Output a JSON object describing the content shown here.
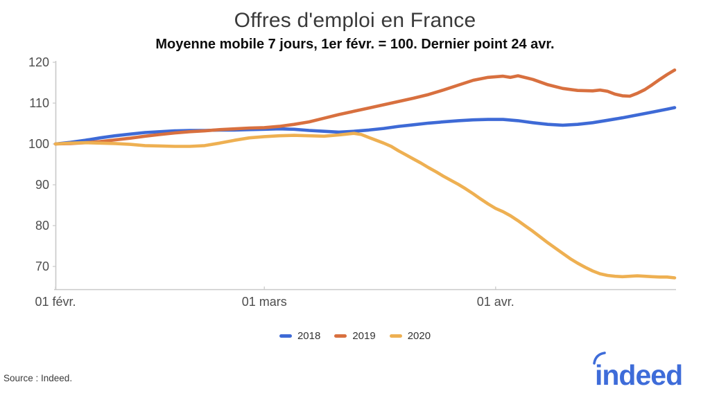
{
  "header": {
    "title": "Offres d'emploi en France",
    "subtitle": "Moyenne mobile 7 jours, 1er févr. = 100. Dernier point 24 avr."
  },
  "footer": {
    "source": "Source : Indeed.",
    "logo_text": "indeed"
  },
  "colors": {
    "axis": "#c9c9c9",
    "tick_label": "#4d4d4d",
    "title": "#3a3a3a",
    "subtitle": "#0d0d0d",
    "logo_blue": "#3e6cd9",
    "series_2018": "#3e6ad6",
    "series_2019": "#d8703f",
    "series_2020": "#eeb052"
  },
  "chart_data": {
    "type": "line",
    "title": "Offres d'emploi en France",
    "subtitle": "Moyenne mobile 7 jours, 1er févr. = 100. Dernier point 24 avr.",
    "xlabel": "",
    "ylabel": "",
    "x_unit": "jours depuis le 1er février 2020",
    "x_range_days": [
      0,
      83
    ],
    "ylim": [
      65,
      121
    ],
    "grid": false,
    "legend_position": "bottom",
    "yticks": [
      70,
      80,
      90,
      100,
      110,
      120
    ],
    "xticks": [
      {
        "day": 0,
        "label": "01 févr."
      },
      {
        "day": 28,
        "label": "01 mars"
      },
      {
        "day": 59,
        "label": "01 avr."
      }
    ],
    "series": [
      {
        "name": "2018",
        "color": "#3e6ad6",
        "points": [
          [
            0,
            100
          ],
          [
            2,
            100.4
          ],
          [
            4,
            100.9
          ],
          [
            6,
            101.5
          ],
          [
            8,
            102.0
          ],
          [
            10,
            102.4
          ],
          [
            12,
            102.8
          ],
          [
            14,
            103.0
          ],
          [
            16,
            103.2
          ],
          [
            18,
            103.3
          ],
          [
            20,
            103.3
          ],
          [
            22,
            103.4
          ],
          [
            24,
            103.4
          ],
          [
            26,
            103.5
          ],
          [
            28,
            103.6
          ],
          [
            30,
            103.7
          ],
          [
            32,
            103.6
          ],
          [
            34,
            103.3
          ],
          [
            36,
            103.1
          ],
          [
            38,
            102.9
          ],
          [
            40,
            103.1
          ],
          [
            42,
            103.4
          ],
          [
            44,
            103.8
          ],
          [
            46,
            104.3
          ],
          [
            48,
            104.7
          ],
          [
            50,
            105.1
          ],
          [
            52,
            105.4
          ],
          [
            54,
            105.7
          ],
          [
            56,
            105.9
          ],
          [
            58,
            106.0
          ],
          [
            60,
            106.0
          ],
          [
            62,
            105.7
          ],
          [
            64,
            105.2
          ],
          [
            66,
            104.8
          ],
          [
            68,
            104.6
          ],
          [
            70,
            104.8
          ],
          [
            72,
            105.2
          ],
          [
            74,
            105.8
          ],
          [
            76,
            106.4
          ],
          [
            78,
            107.1
          ],
          [
            80,
            107.8
          ],
          [
            82,
            108.5
          ],
          [
            83,
            108.9
          ]
        ]
      },
      {
        "name": "2019",
        "color": "#d8703f",
        "points": [
          [
            0,
            100
          ],
          [
            2,
            100.1
          ],
          [
            4,
            100.3
          ],
          [
            6,
            100.6
          ],
          [
            8,
            101.0
          ],
          [
            10,
            101.4
          ],
          [
            12,
            101.9
          ],
          [
            14,
            102.3
          ],
          [
            16,
            102.7
          ],
          [
            18,
            103.0
          ],
          [
            20,
            103.2
          ],
          [
            22,
            103.5
          ],
          [
            24,
            103.7
          ],
          [
            26,
            103.9
          ],
          [
            28,
            104.0
          ],
          [
            30,
            104.3
          ],
          [
            32,
            104.8
          ],
          [
            34,
            105.4
          ],
          [
            36,
            106.3
          ],
          [
            38,
            107.2
          ],
          [
            40,
            108.0
          ],
          [
            42,
            108.8
          ],
          [
            44,
            109.6
          ],
          [
            46,
            110.4
          ],
          [
            48,
            111.2
          ],
          [
            50,
            112.1
          ],
          [
            52,
            113.2
          ],
          [
            54,
            114.4
          ],
          [
            56,
            115.6
          ],
          [
            58,
            116.3
          ],
          [
            60,
            116.6
          ],
          [
            61,
            116.3
          ],
          [
            62,
            116.7
          ],
          [
            64,
            115.8
          ],
          [
            66,
            114.5
          ],
          [
            68,
            113.6
          ],
          [
            70,
            113.1
          ],
          [
            72,
            113.0
          ],
          [
            73,
            113.2
          ],
          [
            74,
            112.9
          ],
          [
            75,
            112.2
          ],
          [
            76,
            111.8
          ],
          [
            77,
            111.7
          ],
          [
            78,
            112.4
          ],
          [
            79,
            113.3
          ],
          [
            80,
            114.5
          ],
          [
            81,
            115.8
          ],
          [
            82,
            117.0
          ],
          [
            83,
            118.1
          ]
        ]
      },
      {
        "name": "2020",
        "color": "#eeb052",
        "points": [
          [
            0,
            100
          ],
          [
            2,
            100.2
          ],
          [
            4,
            100.3
          ],
          [
            6,
            100.2
          ],
          [
            8,
            100.1
          ],
          [
            10,
            99.9
          ],
          [
            12,
            99.6
          ],
          [
            14,
            99.5
          ],
          [
            16,
            99.4
          ],
          [
            18,
            99.4
          ],
          [
            20,
            99.6
          ],
          [
            22,
            100.2
          ],
          [
            24,
            100.9
          ],
          [
            26,
            101.5
          ],
          [
            28,
            101.8
          ],
          [
            30,
            102.0
          ],
          [
            32,
            102.1
          ],
          [
            34,
            102.0
          ],
          [
            36,
            101.9
          ],
          [
            38,
            102.2
          ],
          [
            40,
            102.6
          ],
          [
            41,
            102.3
          ],
          [
            42,
            101.6
          ],
          [
            43,
            100.9
          ],
          [
            44,
            100.2
          ],
          [
            45,
            99.4
          ],
          [
            46,
            98.3
          ],
          [
            47,
            97.3
          ],
          [
            48,
            96.3
          ],
          [
            49,
            95.3
          ],
          [
            50,
            94.2
          ],
          [
            51,
            93.2
          ],
          [
            52,
            92.1
          ],
          [
            53,
            91.1
          ],
          [
            54,
            90.1
          ],
          [
            55,
            89.0
          ],
          [
            56,
            87.8
          ],
          [
            57,
            86.5
          ],
          [
            58,
            85.3
          ],
          [
            59,
            84.2
          ],
          [
            60,
            83.4
          ],
          [
            61,
            82.4
          ],
          [
            62,
            81.2
          ],
          [
            63,
            79.9
          ],
          [
            64,
            78.6
          ],
          [
            65,
            77.2
          ],
          [
            66,
            75.8
          ],
          [
            67,
            74.5
          ],
          [
            68,
            73.2
          ],
          [
            69,
            71.9
          ],
          [
            70,
            70.8
          ],
          [
            71,
            69.8
          ],
          [
            72,
            68.9
          ],
          [
            73,
            68.2
          ],
          [
            74,
            67.8
          ],
          [
            75,
            67.6
          ],
          [
            76,
            67.5
          ],
          [
            77,
            67.6
          ],
          [
            78,
            67.7
          ],
          [
            79,
            67.6
          ],
          [
            80,
            67.5
          ],
          [
            81,
            67.4
          ],
          [
            82,
            67.4
          ],
          [
            83,
            67.2
          ]
        ]
      }
    ]
  }
}
